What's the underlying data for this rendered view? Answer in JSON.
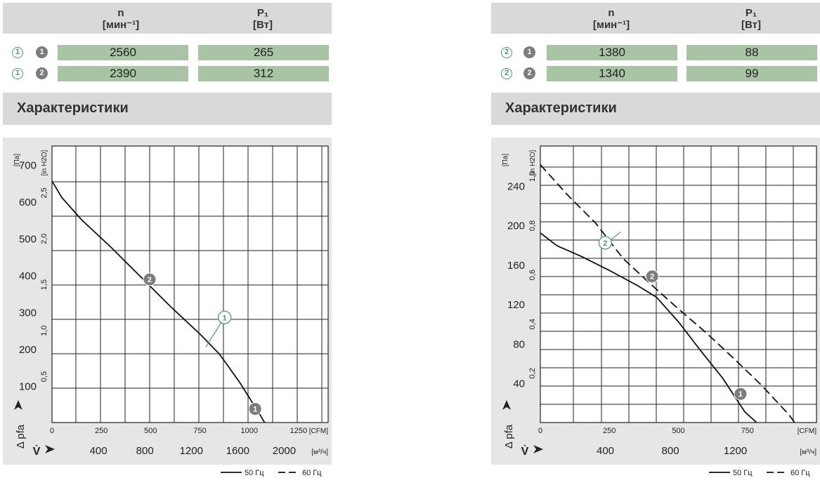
{
  "colors": {
    "table_cell": "#a9c4a5",
    "header_bg": "#d9d9d9",
    "chart_bg": "#e6e6e6",
    "marker_green": "#4e9a6b",
    "marker_grey": "#7d7d7d"
  },
  "panels": [
    {
      "headers": {
        "n": "n",
        "n_unit": "[мин⁻¹]",
        "p": "P₁",
        "p_unit": "[Вт]"
      },
      "rows": [
        {
          "mode": "1",
          "curve": "1",
          "n": "2560",
          "p": "265"
        },
        {
          "mode": "1",
          "curve": "2",
          "n": "2390",
          "p": "312"
        }
      ],
      "section_title": "Характеристики"
    },
    {
      "headers": {
        "n": "n",
        "n_unit": "[мин⁻¹]",
        "p": "P₁",
        "p_unit": "[Вт]"
      },
      "rows": [
        {
          "mode": "2",
          "curve": "1",
          "n": "1380",
          "p": "88"
        },
        {
          "mode": "2",
          "curve": "2",
          "n": "1340",
          "p": "99"
        }
      ],
      "section_title": "Характеристики"
    }
  ],
  "chart_data": [
    {
      "type": "line",
      "title": "",
      "xlabel": "V̇",
      "ylabel": "Δ pfa",
      "x_unit_cfm": "[CFM]",
      "x_unit_m3h": "[м³/ч]",
      "y_unit_pa": "[Па]",
      "y_unit_inh2o": "[in H2O]",
      "xlim_cfm": [
        0,
        1400
      ],
      "ylim_pa": [
        0,
        750
      ],
      "grid": true,
      "cfm_ticks": [
        "0",
        "250",
        "500",
        "750",
        "1000",
        "1250"
      ],
      "m3h_ticks": [
        {
          "v": 400,
          "label": "400"
        },
        {
          "v": 800,
          "label": "800"
        },
        {
          "v": 1200,
          "label": "1200"
        },
        {
          "v": 1600,
          "label": "1600"
        },
        {
          "v": 2000,
          "label": "2000"
        }
      ],
      "pa_ticks": [
        100,
        200,
        300,
        400,
        500,
        600,
        700
      ],
      "inh2o_ticks": [
        {
          "v": 0.5,
          "label": "0,5"
        },
        {
          "v": 1.0,
          "label": "1,0"
        },
        {
          "v": 1.5,
          "label": "1,5"
        },
        {
          "v": 2.0,
          "label": "2,0"
        },
        {
          "v": 2.5,
          "label": "2,5"
        }
      ],
      "series": [
        {
          "style": "solid",
          "points": [
            [
              0,
              655
            ],
            [
              50,
              610
            ],
            [
              150,
              550
            ],
            [
              300,
              475
            ],
            [
              450,
              395
            ],
            [
              600,
              315
            ],
            [
              750,
              240
            ],
            [
              850,
              185
            ],
            [
              950,
              110
            ],
            [
              1050,
              25
            ],
            [
              1100,
              -20
            ]
          ]
        }
      ],
      "markers": [
        {
          "label": "2",
          "style": "filled",
          "x": 495,
          "y": 388
        },
        {
          "label": "1",
          "style": "filled",
          "x": 1030,
          "y": 37
        }
      ],
      "callouts": [
        {
          "label": "1",
          "style": "outline",
          "x": 875,
          "y": 285,
          "line_to": [
            780,
            205
          ]
        }
      ],
      "legend": [
        {
          "style": "solid",
          "label": "50 Гц"
        },
        {
          "style": "dashed",
          "label": "60 Гц"
        }
      ],
      "legend_position": "bottom-right"
    },
    {
      "type": "line",
      "title": "",
      "xlabel": "V̇",
      "ylabel": "Δ pfa",
      "x_unit_cfm": "[CFM]",
      "x_unit_m3h": "[м³/ч]",
      "y_unit_pa": "[Па]",
      "y_unit_inh2o": "[in H2O]",
      "xlim_cfm": [
        0,
        1000
      ],
      "ylim_pa": [
        0,
        280
      ],
      "grid": true,
      "cfm_ticks": [
        "0",
        "250",
        "500",
        "750"
      ],
      "m3h_ticks": [
        {
          "v": 400,
          "label": "400"
        },
        {
          "v": 800,
          "label": "800"
        },
        {
          "v": 1200,
          "label": "1200"
        }
      ],
      "pa_ticks": [
        40,
        80,
        120,
        160,
        200,
        240
      ],
      "inh2o_ticks": [
        {
          "v": 0.2,
          "label": "0,2"
        },
        {
          "v": 0.4,
          "label": "0,4"
        },
        {
          "v": 0.6,
          "label": "0,6"
        },
        {
          "v": 0.8,
          "label": "0,8"
        },
        {
          "v": 1.0,
          "label": "1,0"
        }
      ],
      "series": [
        {
          "style": "solid",
          "points": [
            [
              0,
              192
            ],
            [
              60,
              179
            ],
            [
              150,
              168
            ],
            [
              250,
              154
            ],
            [
              350,
              139
            ],
            [
              420,
              127
            ],
            [
              500,
              102
            ],
            [
              580,
              73
            ],
            [
              660,
              45
            ],
            [
              740,
              11
            ],
            [
              830,
              -12
            ]
          ]
        },
        {
          "style": "dashed",
          "points": [
            [
              0,
              261
            ],
            [
              100,
              230
            ],
            [
              200,
              202
            ],
            [
              300,
              166
            ],
            [
              400,
              140
            ],
            [
              500,
              115
            ],
            [
              600,
              91
            ],
            [
              700,
              65
            ],
            [
              800,
              38
            ],
            [
              900,
              8
            ],
            [
              960,
              -15
            ]
          ]
        }
      ],
      "markers": [
        {
          "label": "2",
          "style": "filled",
          "x": 405,
          "y": 148
        },
        {
          "label": "1",
          "style": "filled",
          "x": 725,
          "y": 29
        }
      ],
      "callouts": [
        {
          "label": "2",
          "style": "outline",
          "x": 235,
          "y": 182,
          "line_to": [
            290,
            193
          ]
        }
      ],
      "legend": [
        {
          "style": "solid",
          "label": "50 Гц"
        },
        {
          "style": "dashed",
          "label": "60 Гц"
        }
      ],
      "legend_position": "bottom-right"
    }
  ]
}
